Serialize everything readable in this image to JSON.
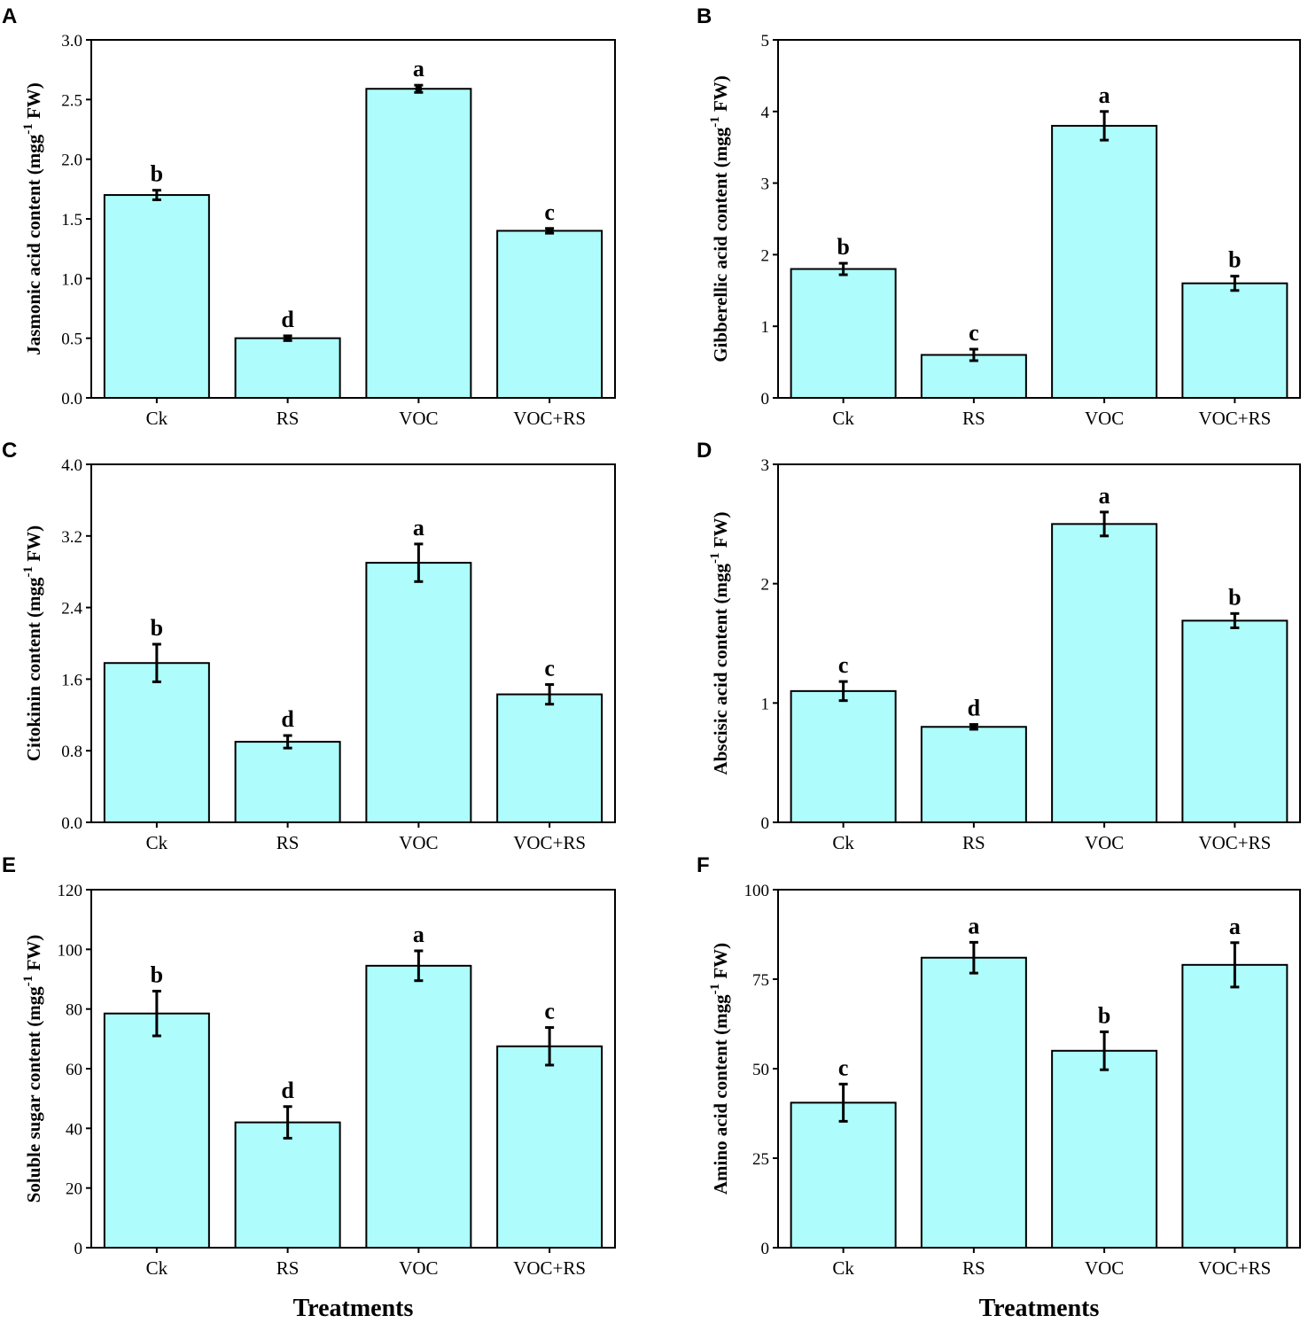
{
  "figure": {
    "bar_color": "#aefcfc",
    "frame_color": "#000000"
  },
  "chart_data": [
    {
      "panel": "A",
      "type": "bar",
      "categories": [
        "Ck",
        "RS",
        "VOC",
        "VOC+RS"
      ],
      "values": [
        1.7,
        0.5,
        2.59,
        1.4
      ],
      "errors": [
        0.04,
        0.02,
        0.03,
        0.02
      ],
      "letters": [
        "b",
        "d",
        "a",
        "c"
      ],
      "ylabel_main": "Jasmonic acid content (mgg",
      "ylabel_sup": "-1",
      "ylabel_end": " FW)",
      "ylim": [
        0,
        3.0
      ],
      "yticks": [
        0.0,
        0.5,
        1.0,
        1.5,
        2.0,
        2.5,
        3.0
      ],
      "ytick_labels": [
        "0.0",
        "0.5",
        "1.0",
        "1.5",
        "2.0",
        "2.5",
        "3.0"
      ],
      "xlabel": ""
    },
    {
      "panel": "B",
      "type": "bar",
      "categories": [
        "Ck",
        "RS",
        "VOC",
        "VOC+RS"
      ],
      "values": [
        1.8,
        0.6,
        3.8,
        1.6
      ],
      "errors": [
        0.08,
        0.08,
        0.2,
        0.1
      ],
      "letters": [
        "b",
        "c",
        "a",
        "b"
      ],
      "ylabel_main": "Gibberellic acid content (mgg",
      "ylabel_sup": "-1",
      "ylabel_end": " FW)",
      "ylim": [
        0,
        5
      ],
      "yticks": [
        0,
        1,
        2,
        3,
        4,
        5
      ],
      "ytick_labels": [
        "0",
        "1",
        "2",
        "3",
        "4",
        "5"
      ],
      "xlabel": ""
    },
    {
      "panel": "C",
      "type": "bar",
      "categories": [
        "Ck",
        "RS",
        "VOC",
        "VOC+RS"
      ],
      "values": [
        1.78,
        0.9,
        2.9,
        1.43
      ],
      "errors": [
        0.21,
        0.07,
        0.21,
        0.11
      ],
      "letters": [
        "b",
        "d",
        "a",
        "c"
      ],
      "ylabel_main": "Citokinin content (mgg",
      "ylabel_sup": "-1",
      "ylabel_end": " FW)",
      "ylim": [
        0,
        4.0
      ],
      "yticks": [
        0.0,
        0.8,
        1.6,
        2.4,
        3.2,
        4.0
      ],
      "ytick_labels": [
        "0.0",
        "0.8",
        "1.6",
        "2.4",
        "3.2",
        "4.0"
      ],
      "xlabel": ""
    },
    {
      "panel": "D",
      "type": "bar",
      "categories": [
        "Ck",
        "RS",
        "VOC",
        "VOC+RS"
      ],
      "values": [
        1.1,
        0.8,
        2.5,
        1.69
      ],
      "errors": [
        0.08,
        0.02,
        0.1,
        0.06
      ],
      "letters": [
        "c",
        "d",
        "a",
        "b"
      ],
      "ylabel_main": "Abscisic acid content (mgg",
      "ylabel_sup": "-1",
      "ylabel_end": " FW)",
      "ylim": [
        0,
        3
      ],
      "yticks": [
        0,
        1,
        2,
        3
      ],
      "ytick_labels": [
        "0",
        "1",
        "2",
        "3"
      ],
      "xlabel": ""
    },
    {
      "panel": "E",
      "type": "bar",
      "categories": [
        "Ck",
        "RS",
        "VOC",
        "VOC+RS"
      ],
      "values": [
        78.5,
        42.0,
        94.5,
        67.5
      ],
      "errors": [
        7.5,
        5.3,
        5.0,
        6.3
      ],
      "letters": [
        "b",
        "d",
        "a",
        "c"
      ],
      "ylabel_main": "Soluble sugar content (mgg",
      "ylabel_sup": "-1",
      "ylabel_end": " FW)",
      "ylim": [
        0,
        120
      ],
      "yticks": [
        0,
        20,
        40,
        60,
        80,
        100,
        120
      ],
      "ytick_labels": [
        "0",
        "20",
        "40",
        "60",
        "80",
        "100",
        "120"
      ],
      "xlabel": "Treatments"
    },
    {
      "panel": "F",
      "type": "bar",
      "categories": [
        "Ck",
        "RS",
        "VOC",
        "VOC+RS"
      ],
      "values": [
        40.5,
        81.0,
        55.0,
        79.0
      ],
      "errors": [
        5.2,
        4.3,
        5.3,
        6.2
      ],
      "letters": [
        "c",
        "a",
        "b",
        "a"
      ],
      "ylabel_main": "Amino acid content (mgg",
      "ylabel_sup": "-1",
      "ylabel_end": " FW)",
      "ylim": [
        0,
        100
      ],
      "yticks": [
        0,
        25,
        50,
        75,
        100
      ],
      "ytick_labels": [
        "0",
        "25",
        "50",
        "75",
        "100"
      ],
      "xlabel": "Treatments"
    }
  ]
}
